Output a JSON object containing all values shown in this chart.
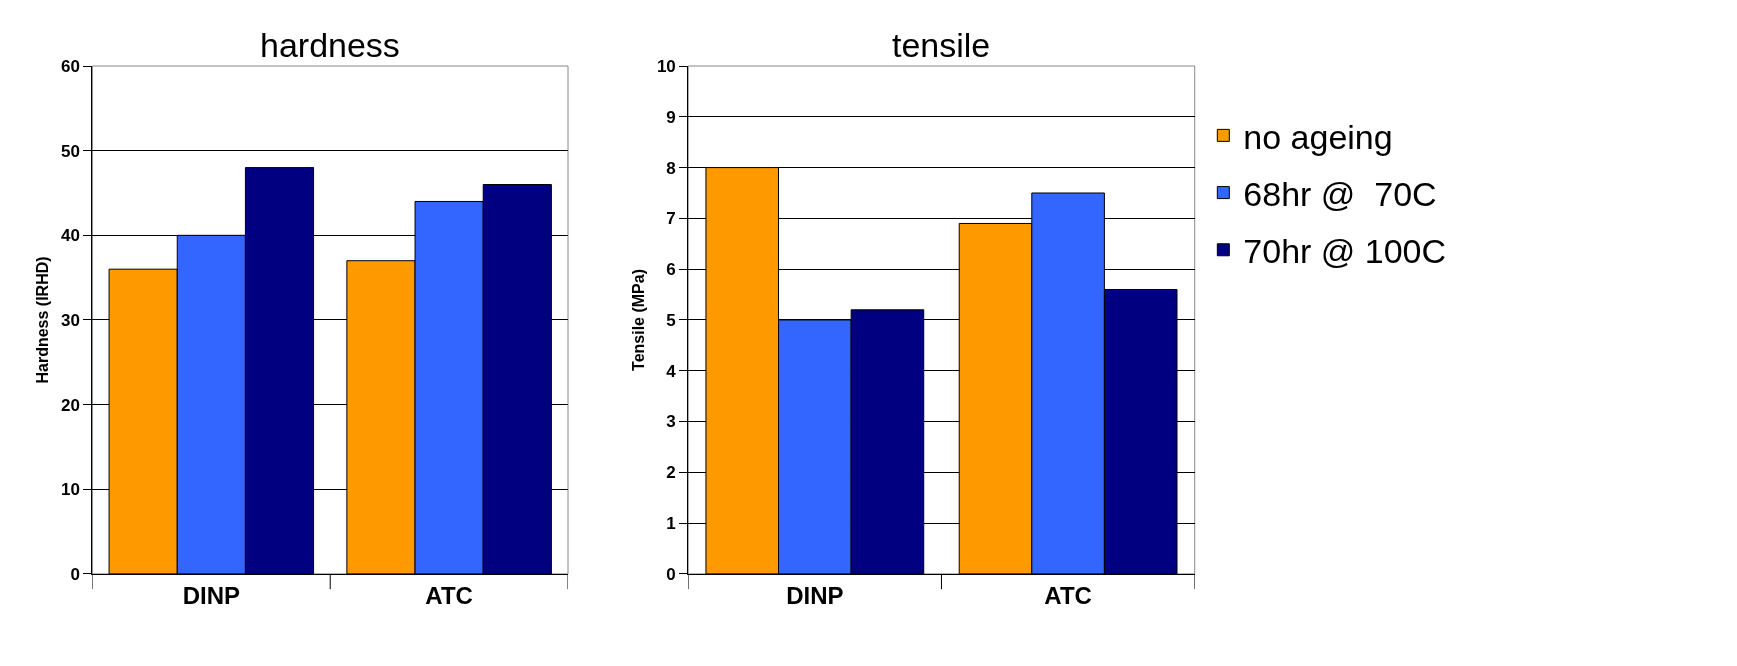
{
  "chart_data": [
    {
      "type": "bar",
      "title": "hardness",
      "ylabel": "Hardness (IRHD)",
      "categories": [
        "DINP",
        "ATC"
      ],
      "ylim": [
        0,
        60
      ],
      "yticks": [
        0,
        10,
        20,
        30,
        40,
        50,
        60
      ],
      "grid": "y",
      "series": [
        {
          "color": "#ff9900",
          "values": [
            36,
            37
          ]
        },
        {
          "color": "#3366ff",
          "values": [
            40,
            44
          ]
        },
        {
          "color": "#000080",
          "values": [
            48,
            46
          ]
        }
      ]
    },
    {
      "type": "bar",
      "title": "tensile",
      "ylabel": "Tensile (MPa)",
      "categories": [
        "DINP",
        "ATC"
      ],
      "ylim": [
        0,
        10
      ],
      "yticks": [
        0,
        1,
        2,
        3,
        4,
        5,
        6,
        7,
        8,
        9,
        10
      ],
      "grid": "y",
      "legend": "right",
      "series": [
        {
          "name": "no ageing",
          "color": "#ff9900",
          "values": [
            8,
            6.9
          ]
        },
        {
          "name": "68hr @  70C",
          "color": "#3366ff",
          "values": [
            5.0,
            7.5
          ]
        },
        {
          "name": "70hr @ 100C",
          "color": "#000080",
          "values": [
            5.2,
            5.6
          ]
        }
      ]
    }
  ]
}
